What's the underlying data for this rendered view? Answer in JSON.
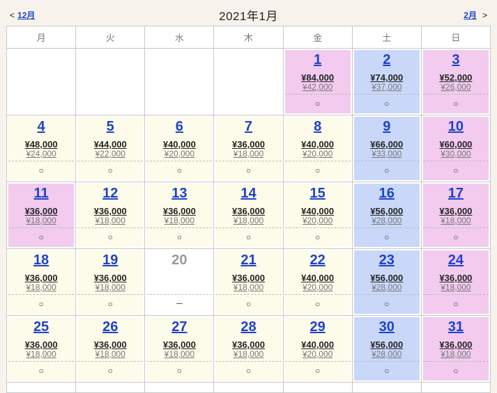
{
  "nav": {
    "prev_symbol": "<",
    "prev_label": "12月",
    "title": "2021年1月",
    "next_label": "2月",
    "next_symbol": ">"
  },
  "weekdays": [
    "月",
    "火",
    "水",
    "木",
    "金",
    "土",
    "日"
  ],
  "weeks": [
    [
      null,
      null,
      null,
      null,
      {
        "day": "1",
        "price": "¥84,000",
        "child": "¥42,000",
        "avail": "○",
        "type": "hol"
      },
      {
        "day": "2",
        "price": "¥74,000",
        "child": "¥37,000",
        "avail": "○",
        "type": "sat"
      },
      {
        "day": "3",
        "price": "¥52,000",
        "child": "¥26,000",
        "avail": "○",
        "type": "hol"
      }
    ],
    [
      {
        "day": "4",
        "price": "¥48,000",
        "child": "¥24,000",
        "avail": "○",
        "type": "weekday"
      },
      {
        "day": "5",
        "price": "¥44,000",
        "child": "¥22,000",
        "avail": "○",
        "type": "weekday"
      },
      {
        "day": "6",
        "price": "¥40,000",
        "child": "¥20,000",
        "avail": "○",
        "type": "weekday"
      },
      {
        "day": "7",
        "price": "¥36,000",
        "child": "¥18,000",
        "avail": "○",
        "type": "weekday"
      },
      {
        "day": "8",
        "price": "¥40,000",
        "child": "¥20,000",
        "avail": "○",
        "type": "weekday"
      },
      {
        "day": "9",
        "price": "¥66,000",
        "child": "¥33,000",
        "avail": "○",
        "type": "sat"
      },
      {
        "day": "10",
        "price": "¥60,000",
        "child": "¥30,000",
        "avail": "○",
        "type": "hol"
      }
    ],
    [
      {
        "day": "11",
        "price": "¥36,000",
        "child": "¥18,000",
        "avail": "○",
        "type": "hol"
      },
      {
        "day": "12",
        "price": "¥36,000",
        "child": "¥18,000",
        "avail": "○",
        "type": "weekday"
      },
      {
        "day": "13",
        "price": "¥36,000",
        "child": "¥18,000",
        "avail": "○",
        "type": "weekday"
      },
      {
        "day": "14",
        "price": "¥36,000",
        "child": "¥18,000",
        "avail": "○",
        "type": "weekday"
      },
      {
        "day": "15",
        "price": "¥40,000",
        "child": "¥20,000",
        "avail": "○",
        "type": "weekday"
      },
      {
        "day": "16",
        "price": "¥56,000",
        "child": "¥28,000",
        "avail": "○",
        "type": "sat"
      },
      {
        "day": "17",
        "price": "¥36,000",
        "child": "¥18,000",
        "avail": "○",
        "type": "hol"
      }
    ],
    [
      {
        "day": "18",
        "price": "¥36,000",
        "child": "¥18,000",
        "avail": "○",
        "type": "weekday"
      },
      {
        "day": "19",
        "price": "¥36,000",
        "child": "¥18,000",
        "avail": "○",
        "type": "weekday"
      },
      {
        "day": "20",
        "price": "",
        "child": "",
        "avail": "－",
        "type": "closed"
      },
      {
        "day": "21",
        "price": "¥36,000",
        "child": "¥18,000",
        "avail": "○",
        "type": "weekday"
      },
      {
        "day": "22",
        "price": "¥40,000",
        "child": "¥20,000",
        "avail": "○",
        "type": "weekday"
      },
      {
        "day": "23",
        "price": "¥56,000",
        "child": "¥28,000",
        "avail": "○",
        "type": "sat"
      },
      {
        "day": "24",
        "price": "¥36,000",
        "child": "¥18,000",
        "avail": "○",
        "type": "hol"
      }
    ],
    [
      {
        "day": "25",
        "price": "¥36,000",
        "child": "¥18,000",
        "avail": "○",
        "type": "weekday"
      },
      {
        "day": "26",
        "price": "¥36,000",
        "child": "¥18,000",
        "avail": "○",
        "type": "weekday"
      },
      {
        "day": "27",
        "price": "¥36,000",
        "child": "¥18,000",
        "avail": "○",
        "type": "weekday"
      },
      {
        "day": "28",
        "price": "¥36,000",
        "child": "¥18,000",
        "avail": "○",
        "type": "weekday"
      },
      {
        "day": "29",
        "price": "¥40,000",
        "child": "¥20,000",
        "avail": "○",
        "type": "weekday"
      },
      {
        "day": "30",
        "price": "¥56,000",
        "child": "¥28,000",
        "avail": "○",
        "type": "sat"
      },
      {
        "day": "31",
        "price": "¥36,000",
        "child": "¥18,000",
        "avail": "○",
        "type": "hol"
      }
    ]
  ],
  "colors": {
    "weekday": "#fdfbea",
    "saturday": "#c9d8f9",
    "holiday": "#f2cbee",
    "link": "#1f42c9"
  }
}
